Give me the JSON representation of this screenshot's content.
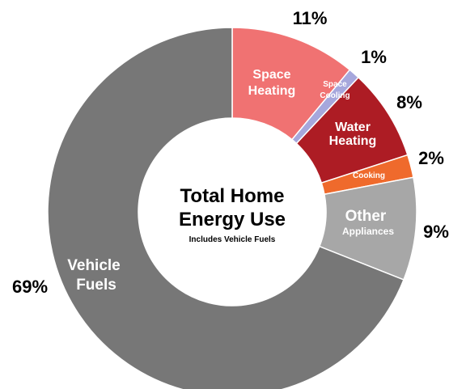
{
  "chart_data": {
    "type": "pie",
    "donut": true,
    "title": "Total Home Energy Use",
    "subtitle": "Includes Vehicle Fuels",
    "slices": [
      {
        "label": "Space Heating",
        "value": 11,
        "pct_label": "11%",
        "color": "#f07272"
      },
      {
        "label": "Space Cooling",
        "value": 1,
        "pct_label": "1%",
        "color": "#a6a7dc"
      },
      {
        "label": "Water Heating",
        "value": 8,
        "pct_label": "8%",
        "color": "#ad1c24"
      },
      {
        "label": "Cooking",
        "value": 2,
        "pct_label": "2%",
        "color": "#ef6a2c"
      },
      {
        "label": "Other Appliances",
        "value": 9,
        "pct_label": "9%",
        "color": "#a7a7a7"
      },
      {
        "label": "Vehicle Fuels",
        "value": 69,
        "pct_label": "69%",
        "color": "#777777"
      }
    ]
  }
}
